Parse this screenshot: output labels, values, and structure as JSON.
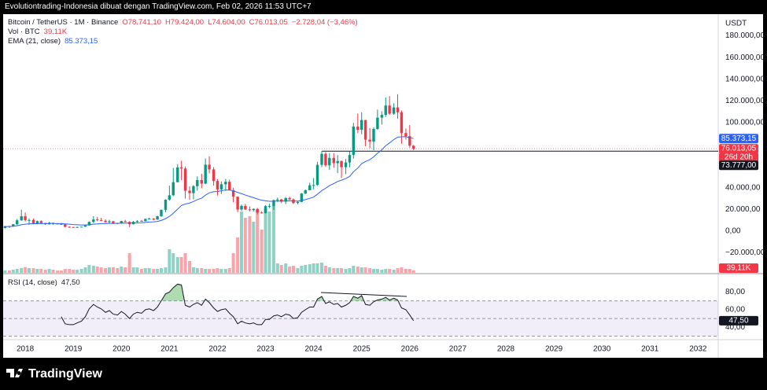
{
  "header": "Evolutiontrading-Indonesia dibuat dengan TradingView.com, Feb 02, 2026 11:53 UTC+7",
  "footer": "TradingView",
  "chart_data": [
    {
      "type": "candlestick",
      "title": "Bitcoin / TetherUS · 1M · Binance",
      "ohlc_text": {
        "open": "O78.741,10",
        "high": "H79.424,00",
        "low": "L74.604,00",
        "close": "C76.013,05",
        "change": "−2.728,04 (−3,46%)"
      },
      "axis_label": "USDT",
      "x": [
        2017.58,
        2017.67,
        2017.75,
        2017.83,
        2017.92,
        2018,
        2018.08,
        2018.17,
        2018.25,
        2018.33,
        2018.42,
        2018.5,
        2018.58,
        2018.67,
        2018.75,
        2018.83,
        2018.92,
        2019,
        2019.08,
        2019.17,
        2019.25,
        2019.33,
        2019.42,
        2019.5,
        2019.58,
        2019.67,
        2019.75,
        2019.83,
        2019.92,
        2020,
        2020.08,
        2020.17,
        2020.25,
        2020.33,
        2020.42,
        2020.5,
        2020.58,
        2020.67,
        2020.75,
        2020.83,
        2020.92,
        2021,
        2021.08,
        2021.17,
        2021.25,
        2021.33,
        2021.42,
        2021.5,
        2021.58,
        2021.67,
        2021.75,
        2021.83,
        2021.92,
        2022,
        2022.08,
        2022.17,
        2022.25,
        2022.33,
        2022.42,
        2022.5,
        2022.58,
        2022.67,
        2022.75,
        2022.83,
        2022.92,
        2023,
        2023.08,
        2023.17,
        2023.25,
        2023.33,
        2023.42,
        2023.5,
        2023.58,
        2023.67,
        2023.75,
        2023.83,
        2023.92,
        2024,
        2024.08,
        2024.17,
        2024.25,
        2024.33,
        2024.42,
        2024.5,
        2024.58,
        2024.67,
        2024.75,
        2024.83,
        2024.92,
        2025,
        2025.08,
        2025.17,
        2025.25,
        2025.33,
        2025.42,
        2025.5,
        2025.58,
        2025.67,
        2025.75,
        2025.83,
        2025.92,
        2026,
        2026.08
      ],
      "xlim": [
        2017.54,
        2032.42
      ],
      "xticks": [
        2018,
        2019,
        2020,
        2021,
        2022,
        2023,
        2024,
        2025,
        2026,
        2027,
        2028,
        2029,
        2030,
        2031,
        2032
      ],
      "open": [
        2870,
        4700,
        4340,
        6450,
        10000,
        13800,
        10200,
        10300,
        6900,
        9240,
        7490,
        6390,
        7730,
        7030,
        6630,
        6370,
        4040,
        3740,
        3460,
        3800,
        4100,
        5320,
        8560,
        10820,
        10080,
        9600,
        8290,
        9150,
        7540,
        7190,
        9350,
        8540,
        6410,
        8630,
        9450,
        9140,
        11350,
        11650,
        10780,
        13800,
        19700,
        28990,
        33110,
        45140,
        58800,
        57720,
        37300,
        35040,
        41460,
        47100,
        43820,
        61300,
        56950,
        46220,
        38480,
        43190,
        45540,
        37640,
        31800,
        19940,
        23300,
        20050,
        19430,
        20490,
        17170,
        16540,
        23130,
        23150,
        28480,
        29250,
        27220,
        30480,
        29230,
        25940,
        26970,
        34650,
        37720,
        42280,
        42580,
        61130,
        71290,
        60670,
        67530,
        62680,
        64630,
        58970,
        63330,
        70220,
        96410,
        93430,
        102430,
        84350,
        82550,
        94210,
        104640,
        107170,
        115760,
        108250,
        114050,
        109600,
        90400,
        87600,
        78741.1
      ],
      "high": [
        4750,
        4980,
        6470,
        11300,
        19800,
        17200,
        11800,
        11700,
        9800,
        10000,
        7770,
        8500,
        7760,
        7410,
        7680,
        6560,
        4310,
        4140,
        4200,
        4140,
        5600,
        9100,
        13900,
        13200,
        12330,
        10900,
        10540,
        9510,
        7750,
        9580,
        10500,
        9190,
        9470,
        10070,
        10380,
        11440,
        12490,
        12070,
        14100,
        19860,
        29300,
        41950,
        58350,
        61780,
        64850,
        59600,
        41330,
        42450,
        50500,
        52920,
        67000,
        69000,
        59050,
        47990,
        45800,
        48190,
        47440,
        40020,
        31980,
        24670,
        25200,
        22800,
        20990,
        21480,
        18390,
        23960,
        25250,
        29190,
        31000,
        29820,
        31390,
        31800,
        30240,
        27490,
        35200,
        38450,
        44700,
        48970,
        64000,
        73780,
        72800,
        71980,
        71950,
        70080,
        65100,
        66500,
        73620,
        99800,
        108350,
        109590,
        102500,
        95000,
        95760,
        111980,
        110530,
        123220,
        124470,
        117900,
        126200,
        111250,
        94600,
        97900,
        79424
      ],
      "low": [
        2580,
        2970,
        4110,
        5500,
        9500,
        9000,
        5900,
        6400,
        6400,
        7000,
        5750,
        6070,
        5880,
        6100,
        6100,
        3650,
        3160,
        3350,
        3400,
        3670,
        4040,
        5300,
        7450,
        9070,
        9320,
        7710,
        7300,
        6520,
        6430,
        6850,
        8410,
        3780,
        6150,
        8100,
        8830,
        8970,
        10950,
        9880,
        10370,
        13200,
        17570,
        28130,
        32300,
        45000,
        47040,
        30000,
        28800,
        29280,
        37330,
        39600,
        43280,
        53250,
        42000,
        32930,
        34320,
        37150,
        37700,
        26700,
        17570,
        18780,
        19520,
        18130,
        18180,
        15480,
        16260,
        16500,
        21350,
        19550,
        26940,
        25810,
        24800,
        28860,
        25170,
        24900,
        26540,
        34080,
        37640,
        38560,
        41880,
        59000,
        59200,
        56550,
        58400,
        53500,
        49000,
        52550,
        58870,
        66830,
        90500,
        89250,
        78260,
        76550,
        74500,
        93340,
        98200,
        105280,
        107270,
        107270,
        103530,
        80600,
        84400,
        77000,
        74604
      ],
      "close": [
        4700,
        4340,
        6450,
        10000,
        13800,
        10200,
        10300,
        6900,
        9240,
        7490,
        6390,
        7730,
        7030,
        6630,
        6370,
        4040,
        3740,
        3460,
        3800,
        4100,
        5320,
        8560,
        10820,
        10080,
        9600,
        8290,
        9150,
        7540,
        7190,
        9350,
        8540,
        6410,
        8630,
        9450,
        9140,
        11350,
        11650,
        10780,
        13800,
        19700,
        28990,
        33110,
        45140,
        58800,
        57720,
        37300,
        35040,
        41460,
        47100,
        43820,
        61300,
        56950,
        46220,
        38480,
        43190,
        45540,
        37640,
        31800,
        19940,
        23300,
        20050,
        19430,
        20490,
        17170,
        16540,
        23130,
        23150,
        28480,
        29250,
        27220,
        30480,
        29230,
        25940,
        26970,
        34650,
        37720,
        42280,
        42580,
        61130,
        71290,
        60670,
        67530,
        62680,
        64630,
        58970,
        63330,
        70220,
        96410,
        93430,
        102430,
        84350,
        82550,
        94210,
        104640,
        107170,
        115760,
        108250,
        114050,
        109600,
        90400,
        87600,
        78741.1,
        76013.05
      ],
      "up_color": "#089981",
      "down_color": "#f23645",
      "ylim": [
        -38400,
        200000
      ],
      "yticks": [
        {
          "value": -20000,
          "label": "−20.000,00"
        },
        {
          "value": 0,
          "label": "0,00"
        },
        {
          "value": 20000,
          "label": "20.000,00"
        },
        {
          "value": 40000,
          "label": "40.000,00"
        },
        {
          "value": 100000,
          "label": "100.000,00"
        },
        {
          "value": 120000,
          "label": "120.000,00"
        },
        {
          "value": 140000,
          "label": "140.000,00"
        },
        {
          "value": 160000,
          "label": "160.000,00"
        },
        {
          "value": 180000,
          "label": "180.000,00"
        }
      ],
      "last_label": "76.013,05",
      "countdown": "26d 20h",
      "hline": {
        "value": 73777,
        "label": "73.777,00"
      },
      "ema": {
        "name": "EMA (21, close)",
        "color": "#2962ff",
        "value_label": "85.373,15",
        "values": [
          4300,
          4300,
          4500,
          5000,
          6000,
          6400,
          6800,
          6800,
          7000,
          7050,
          7000,
          7050,
          7050,
          7000,
          7000,
          6700,
          6400,
          6100,
          5900,
          5750,
          5700,
          6000,
          6400,
          6700,
          6950,
          7000,
          7200,
          7200,
          7200,
          7400,
          7500,
          7400,
          7500,
          7700,
          7800,
          8100,
          8400,
          8600,
          9000,
          9900,
          11600,
          13600,
          16500,
          20300,
          23700,
          25000,
          25900,
          27300,
          29100,
          30400,
          33200,
          35400,
          36400,
          36600,
          37200,
          38000,
          37900,
          37300,
          35700,
          34600,
          33300,
          32000,
          30900,
          29700,
          28500,
          28000,
          27500,
          27600,
          27800,
          27700,
          27900,
          28000,
          27800,
          27700,
          28300,
          29100,
          30300,
          31400,
          34100,
          37400,
          39500,
          42000,
          43900,
          45800,
          47000,
          48500,
          50500,
          54700,
          58200,
          62200,
          64200,
          65900,
          68500,
          71800,
          75000,
          78700,
          81400,
          84400,
          86700,
          87000,
          87100,
          86200,
          85373.15
        ]
      },
      "volume": {
        "name": "Vol · BTC",
        "value_label": "39,11K",
        "ylim": [
          0,
          1100000
        ],
        "values": [
          37500,
          37500,
          50000,
          62500,
          75000,
          87500,
          75000,
          75000,
          62500,
          62500,
          50000,
          62500,
          50000,
          37500,
          37500,
          62500,
          62500,
          50000,
          50000,
          62500,
          87500,
          125000,
          112500,
          100000,
          87500,
          75000,
          87500,
          87500,
          75000,
          100000,
          87500,
          312500,
          87500,
          87500,
          62500,
          75000,
          75000,
          62500,
          62500,
          75000,
          87500,
          375000,
          312500,
          250000,
          250000,
          312500,
          187500,
          87500,
          75000,
          75000,
          62500,
          62500,
          62500,
          75000,
          62500,
          62500,
          75000,
          312500,
          562500,
          975000,
          875000,
          900000,
          812500,
          1000000,
          687500,
          1025000,
          975000,
          1062500,
          150000,
          125000,
          150000,
          100000,
          112500,
          75000,
          112500,
          125000,
          137500,
          150000,
          150000,
          162500,
          112500,
          87500,
          75000,
          75000,
          75000,
          62500,
          75000,
          112500,
          100000,
          87500,
          87500,
          75000,
          62500,
          62500,
          50000,
          62500,
          62500,
          50000,
          75000,
          87500,
          62500,
          62500,
          39110
        ]
      }
    },
    {
      "type": "line",
      "title": "RSI (14, close)",
      "value_label": "47,50",
      "color": "#131722",
      "overbought_color": "#4caf50",
      "band_color": "#7e57c2",
      "levels": [
        70,
        50,
        30
      ],
      "values": [
        null,
        null,
        null,
        null,
        null,
        null,
        null,
        null,
        null,
        null,
        null,
        null,
        null,
        null,
        52,
        44,
        43,
        43,
        45,
        47,
        52,
        61,
        66,
        63,
        61,
        57,
        59,
        55,
        54,
        58,
        55,
        50,
        55,
        57,
        56,
        60,
        61,
        59,
        63,
        70,
        78,
        80,
        85,
        89,
        88,
        65,
        63,
        66,
        68,
        65,
        72,
        68,
        62,
        58,
        60,
        61,
        56,
        52,
        44,
        47,
        45,
        44,
        45,
        43,
        43,
        49,
        49,
        53,
        54,
        52,
        55,
        54,
        50,
        51,
        57,
        60,
        63,
        63,
        72,
        75,
        67,
        69,
        66,
        67,
        63,
        65,
        68,
        75,
        73,
        76,
        66,
        65,
        69,
        71,
        72,
        74,
        71,
        73,
        71,
        62,
        60,
        54,
        47.5
      ],
      "ylim": [
        26,
        100
      ],
      "yticks": [
        {
          "value": 40,
          "label": "40,00"
        },
        {
          "value": 60,
          "label": "60,00"
        },
        {
          "value": 80,
          "label": "80,00"
        }
      ]
    }
  ]
}
